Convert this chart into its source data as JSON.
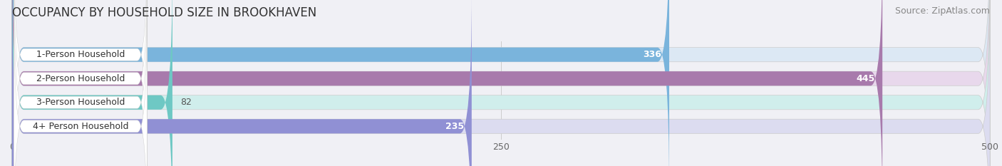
{
  "title": "OCCUPANCY BY HOUSEHOLD SIZE IN BROOKHAVEN",
  "source": "Source: ZipAtlas.com",
  "categories": [
    "1-Person Household",
    "2-Person Household",
    "3-Person Household",
    "4+ Person Household"
  ],
  "values": [
    336,
    445,
    82,
    235
  ],
  "bar_colors": [
    "#7ab4dc",
    "#a87aac",
    "#6ec8c4",
    "#9090d4"
  ],
  "bar_bg_colors": [
    "#dce8f4",
    "#e8d8ec",
    "#d0eeec",
    "#dcdcf0"
  ],
  "xlim": [
    0,
    500
  ],
  "xticks": [
    0,
    250,
    500
  ],
  "title_fontsize": 12,
  "source_fontsize": 9,
  "label_fontsize": 9,
  "value_fontsize": 9,
  "background_color": "#f0f0f5",
  "label_box_color": "#ffffff"
}
